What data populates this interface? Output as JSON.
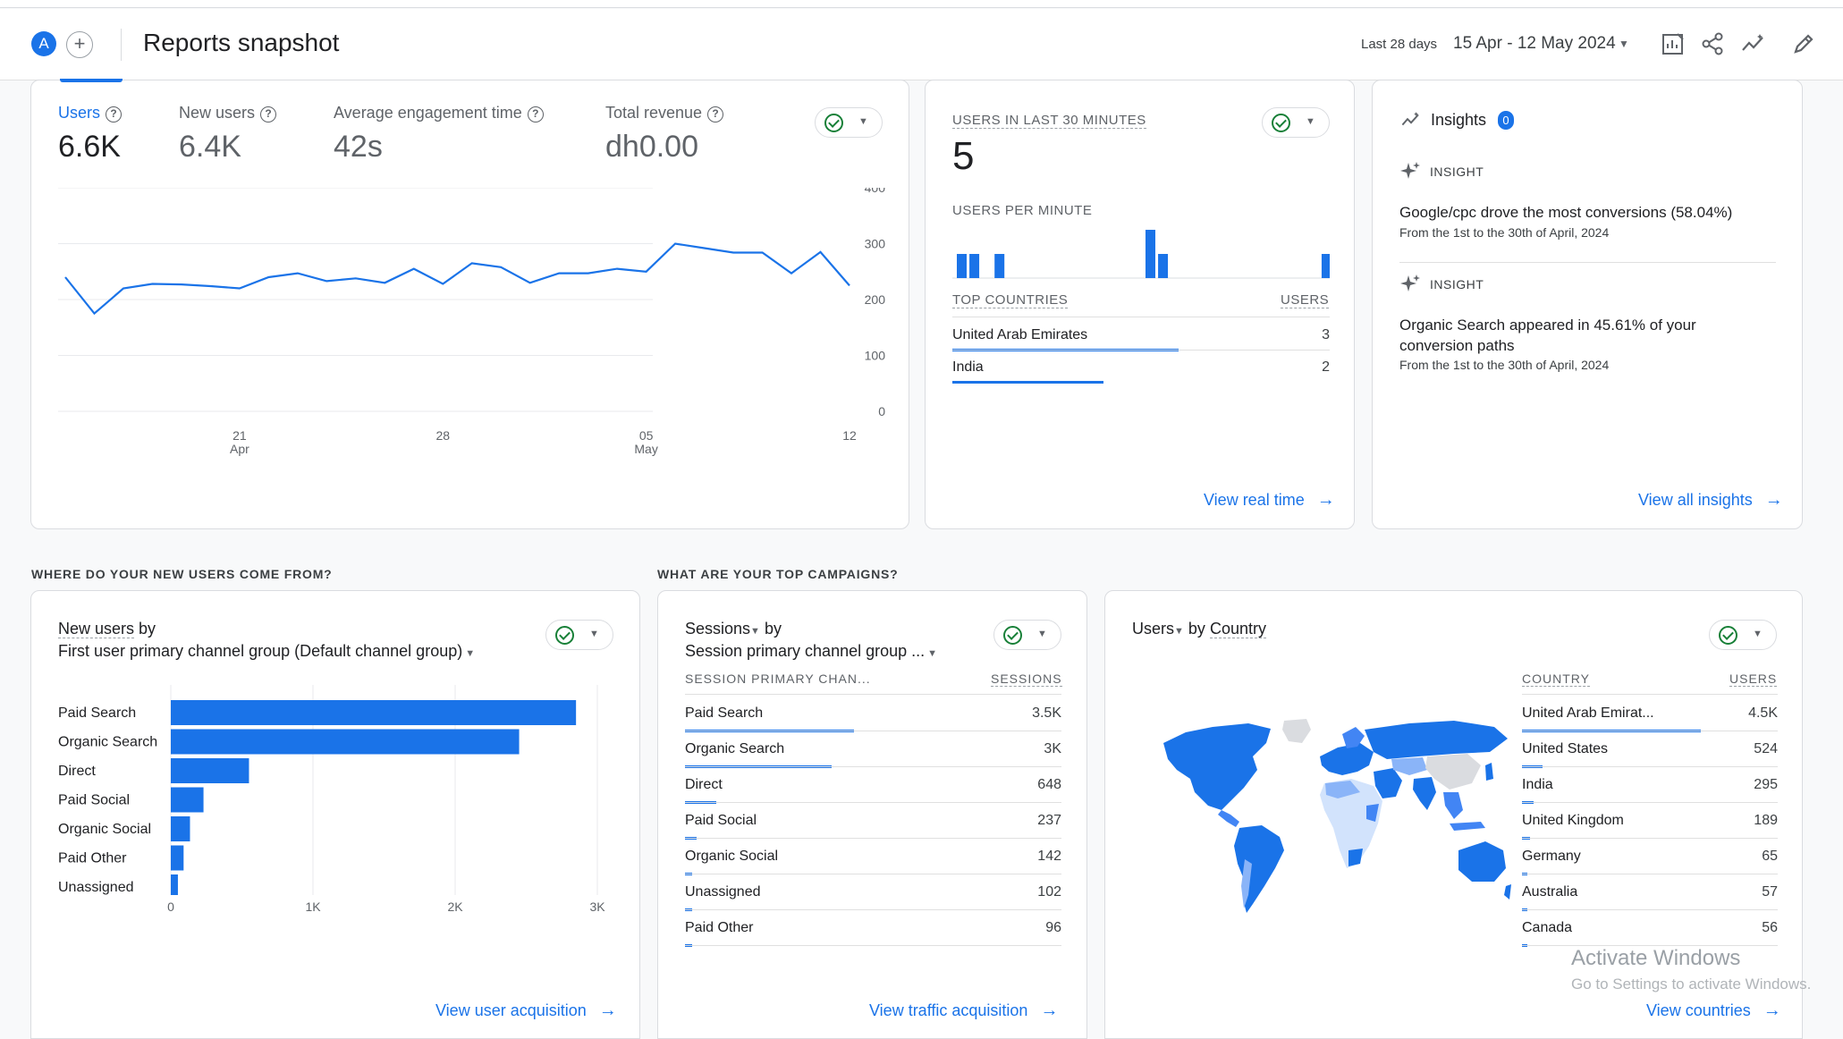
{
  "header": {
    "avatar_letter": "A",
    "add_symbol": "+",
    "title": "Reports snapshot",
    "date_label": "Last 28 days",
    "date_range": "15 Apr - 12 May 2024",
    "icons": [
      "customize-report-icon",
      "share-icon",
      "insights-trend-icon",
      "edit-icon"
    ]
  },
  "overview": {
    "metrics": [
      {
        "label": "Users",
        "value": "6.6K"
      },
      {
        "label": "New users",
        "value": "6.4K"
      },
      {
        "label": "Average engagement time",
        "value": "42s"
      },
      {
        "label": "Total revenue",
        "value": "dh0.00"
      }
    ],
    "chart_data": {
      "type": "line",
      "title": "",
      "x": [
        "15 Apr",
        "16 Apr",
        "17 Apr",
        "18 Apr",
        "19 Apr",
        "20 Apr",
        "21 Apr",
        "22 Apr",
        "23 Apr",
        "24 Apr",
        "25 Apr",
        "26 Apr",
        "27 Apr",
        "28 Apr",
        "29 Apr",
        "30 Apr",
        "1 May",
        "2 May",
        "3 May",
        "4 May",
        "5 May",
        "6 May",
        "7 May",
        "8 May",
        "9 May",
        "10 May",
        "11 May",
        "12 May"
      ],
      "series": [
        {
          "values": [
            240,
            175,
            220,
            228,
            227,
            224,
            220,
            240,
            247,
            233,
            238,
            230,
            255,
            228,
            265,
            258,
            230,
            247,
            247,
            255,
            250,
            300,
            292,
            284,
            284,
            247,
            285,
            225
          ]
        }
      ],
      "ylim": [
        0,
        400
      ],
      "yticks": [
        "400",
        "300",
        "200",
        "100",
        "0"
      ],
      "xticks": [
        {
          "day": "21",
          "month": "Apr"
        },
        {
          "day": "28",
          "month": ""
        },
        {
          "day": "05",
          "month": "May"
        },
        {
          "day": "12",
          "month": ""
        }
      ],
      "grid": true
    }
  },
  "realtime": {
    "title": "USERS IN LAST 30 MINUTES",
    "value": "5",
    "per_minute_label": "USERS PER MINUTE",
    "per_minute_bars": [
      1,
      1,
      0,
      1,
      0,
      0,
      0,
      0,
      0,
      0,
      0,
      0,
      0,
      0,
      0,
      2,
      1,
      0,
      0,
      0,
      0,
      0,
      0,
      0,
      0,
      0,
      0,
      0,
      0,
      1
    ],
    "countries_header": "TOP COUNTRIES",
    "users_header": "USERS",
    "countries": [
      {
        "name": "United Arab Emirates",
        "users": "3",
        "share": 0.6
      },
      {
        "name": "India",
        "users": "2",
        "share": 0.4
      }
    ],
    "link": "View real time"
  },
  "insights": {
    "title": "Insights",
    "badge": "0",
    "items": [
      {
        "tag": "INSIGHT",
        "text": "Google/cpc drove the most conversions (58.04%)",
        "sub": "From the 1st to the 30th of April, 2024"
      },
      {
        "tag": "INSIGHT",
        "text": "Organic Search appeared in 45.61% of your conversion paths",
        "sub": "From the 1st to the 30th of April, 2024"
      }
    ],
    "link": "View all insights"
  },
  "sections": {
    "new_users_title": "WHERE DO YOUR NEW USERS COME FROM?",
    "campaigns_title": "WHAT ARE YOUR TOP CAMPAIGNS?"
  },
  "acquisition": {
    "title_metric": "New users",
    "title_by": "by",
    "dimension": "First user primary channel group (Default channel group)",
    "chart_data": {
      "type": "bar",
      "orientation": "horizontal",
      "categories": [
        "Paid Search",
        "Organic Search",
        "Direct",
        "Paid Social",
        "Organic Social",
        "Paid Other",
        "Unassigned"
      ],
      "values": [
        2850,
        2450,
        550,
        230,
        135,
        90,
        50
      ],
      "xlim": [
        0,
        3000
      ],
      "xticks": [
        "0",
        "1K",
        "2K",
        "3K"
      ]
    },
    "link": "View user acquisition"
  },
  "traffic": {
    "title_metric": "Sessions",
    "title_by": "by",
    "dimension": "Session primary channel group ...",
    "col1": "SESSION PRIMARY CHAN...",
    "col2": "SESSIONS",
    "rows": [
      {
        "name": "Paid Search",
        "value": "3.5K",
        "share": 0.45
      },
      {
        "name": "Organic Search",
        "value": "3K",
        "share": 0.39
      },
      {
        "name": "Direct",
        "value": "648",
        "share": 0.083
      },
      {
        "name": "Paid Social",
        "value": "237",
        "share": 0.03
      },
      {
        "name": "Organic Social",
        "value": "142",
        "share": 0.018
      },
      {
        "name": "Unassigned",
        "value": "102",
        "share": 0.013
      },
      {
        "name": "Paid Other",
        "value": "96",
        "share": 0.012
      }
    ],
    "link": "View traffic acquisition"
  },
  "country": {
    "title_metric": "Users",
    "title_by": "by",
    "title_dim": "Country",
    "col1": "COUNTRY",
    "col2": "USERS",
    "rows": [
      {
        "name": "United Arab Emirat...",
        "value": "4.5K",
        "share": 0.7
      },
      {
        "name": "United States",
        "value": "524",
        "share": 0.08
      },
      {
        "name": "India",
        "value": "295",
        "share": 0.045
      },
      {
        "name": "United Kingdom",
        "value": "189",
        "share": 0.03
      },
      {
        "name": "Germany",
        "value": "65",
        "share": 0.01
      },
      {
        "name": "Australia",
        "value": "57",
        "share": 0.009
      },
      {
        "name": "Canada",
        "value": "56",
        "share": 0.009
      }
    ],
    "link": "View countries"
  },
  "watermark": {
    "line1": "Activate Windows",
    "line2": "Go to Settings to activate Windows."
  },
  "colors": {
    "accent": "#1a73e8",
    "success": "#188038",
    "text_muted": "#5f6368"
  }
}
